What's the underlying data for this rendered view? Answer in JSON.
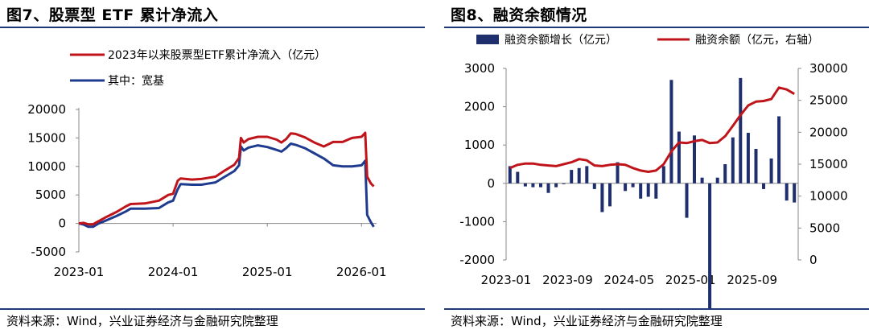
{
  "left": {
    "title": "图7、股票型 ETF 累计净流入",
    "source": "资料来源：Wind，兴业证券经济与金融研究院整理",
    "chart_data": {
      "type": "line",
      "legend": [
        {
          "name": "2023年以来股票型ETF累计净流入（亿元）",
          "color": "#c0141b"
        },
        {
          "name": "其中：宽基",
          "color": "#1f3b8f"
        }
      ],
      "xlim": [
        2023.0,
        2026.16
      ],
      "ylim": [
        -5000,
        20000
      ],
      "yticks": [
        -5000,
        0,
        5000,
        10000,
        15000,
        20000
      ],
      "ytick_labels": [
        "-5000",
        "0",
        "5000",
        "10000",
        "15000",
        "20000"
      ],
      "xticks": [
        2023.0,
        2024.0,
        2025.0,
        2026.0
      ],
      "xtick_labels": [
        "2023-01",
        "2024-01",
        "2025-01",
        "2026-01"
      ],
      "series": [
        {
          "name": "2023年以来股票型ETF累计净流入（亿元）",
          "color": "#c0141b",
          "points": [
            [
              2023.0,
              0
            ],
            [
              2023.05,
              100
            ],
            [
              2023.1,
              -150
            ],
            [
              2023.15,
              -150
            ],
            [
              2023.2,
              300
            ],
            [
              2023.3,
              1200
            ],
            [
              2023.4,
              2000
            ],
            [
              2023.5,
              3000
            ],
            [
              2023.55,
              3400
            ],
            [
              2023.7,
              3500
            ],
            [
              2023.85,
              4000
            ],
            [
              2023.95,
              5000
            ],
            [
              2024.0,
              5200
            ],
            [
              2024.05,
              7500
            ],
            [
              2024.08,
              7900
            ],
            [
              2024.2,
              7700
            ],
            [
              2024.3,
              7800
            ],
            [
              2024.45,
              8200
            ],
            [
              2024.55,
              9300
            ],
            [
              2024.65,
              10300
            ],
            [
              2024.7,
              11500
            ],
            [
              2024.72,
              15000
            ],
            [
              2024.75,
              14200
            ],
            [
              2024.8,
              14800
            ],
            [
              2024.9,
              15200
            ],
            [
              2025.0,
              15200
            ],
            [
              2025.1,
              14700
            ],
            [
              2025.15,
              14200
            ],
            [
              2025.2,
              14800
            ],
            [
              2025.25,
              15800
            ],
            [
              2025.3,
              15700
            ],
            [
              2025.4,
              15100
            ],
            [
              2025.5,
              14200
            ],
            [
              2025.6,
              13500
            ],
            [
              2025.7,
              14300
            ],
            [
              2025.8,
              14300
            ],
            [
              2025.9,
              15000
            ],
            [
              2026.0,
              15200
            ],
            [
              2026.04,
              15900
            ],
            [
              2026.06,
              8200
            ],
            [
              2026.1,
              7000
            ],
            [
              2026.13,
              6500
            ]
          ]
        },
        {
          "name": "其中：宽基",
          "color": "#1f3b8f",
          "points": [
            [
              2023.0,
              0
            ],
            [
              2023.05,
              -200
            ],
            [
              2023.1,
              -600
            ],
            [
              2023.15,
              -600
            ],
            [
              2023.2,
              -100
            ],
            [
              2023.3,
              600
            ],
            [
              2023.4,
              1300
            ],
            [
              2023.5,
              2100
            ],
            [
              2023.55,
              2600
            ],
            [
              2023.7,
              2600
            ],
            [
              2023.85,
              2700
            ],
            [
              2023.95,
              3700
            ],
            [
              2024.0,
              4000
            ],
            [
              2024.05,
              6000
            ],
            [
              2024.08,
              6900
            ],
            [
              2024.2,
              6800
            ],
            [
              2024.3,
              6800
            ],
            [
              2024.45,
              7200
            ],
            [
              2024.55,
              8200
            ],
            [
              2024.65,
              9200
            ],
            [
              2024.7,
              10200
            ],
            [
              2024.72,
              13500
            ],
            [
              2024.75,
              12800
            ],
            [
              2024.8,
              13300
            ],
            [
              2024.9,
              13700
            ],
            [
              2025.0,
              13400
            ],
            [
              2025.1,
              12900
            ],
            [
              2025.15,
              12600
            ],
            [
              2025.2,
              13200
            ],
            [
              2025.25,
              14000
            ],
            [
              2025.3,
              13800
            ],
            [
              2025.4,
              13200
            ],
            [
              2025.5,
              12300
            ],
            [
              2025.6,
              11400
            ],
            [
              2025.7,
              10200
            ],
            [
              2025.8,
              10000
            ],
            [
              2025.9,
              10000
            ],
            [
              2026.0,
              10200
            ],
            [
              2026.04,
              11000
            ],
            [
              2026.06,
              1500
            ],
            [
              2026.1,
              200
            ],
            [
              2026.13,
              -600
            ]
          ]
        }
      ]
    }
  },
  "right": {
    "title": "图8、融资余额情况",
    "source": "资料来源：Wind，兴业证券经济与金融研究院整理",
    "chart_data": {
      "type": "bar+line",
      "legend": [
        {
          "name": "融资余额增长（亿元）",
          "color": "#1f2f6e",
          "kind": "bar"
        },
        {
          "name": "融资余额（亿元，右轴）",
          "color": "#c0141b",
          "kind": "line"
        }
      ],
      "ylim_left": [
        -2000,
        3000
      ],
      "yticks_left": [
        -2000,
        -1000,
        0,
        1000,
        2000,
        3000
      ],
      "ytick_labels_left": [
        "-2000",
        "-1000",
        "0",
        "1000",
        "2000",
        "3000"
      ],
      "ylim_right": [
        0,
        30000
      ],
      "yticks_right": [
        0,
        5000,
        10000,
        15000,
        20000,
        25000,
        30000
      ],
      "ytick_labels_right": [
        "0",
        "5000",
        "10000",
        "15000",
        "20000",
        "25000",
        "30000"
      ],
      "xtick_labels": [
        "2023-01",
        "2023-09",
        "2024-05",
        "2025-01",
        "2025-09"
      ],
      "xtick_index": [
        0,
        8,
        16,
        24,
        32
      ],
      "bar_values": [
        450,
        300,
        -80,
        -100,
        -100,
        -250,
        -100,
        -20,
        350,
        400,
        450,
        -150,
        -750,
        -600,
        550,
        -200,
        -100,
        -400,
        -350,
        -400,
        450,
        2700,
        1350,
        -900,
        1250,
        150,
        -3300,
        150,
        500,
        1200,
        2750,
        1320,
        900,
        -150,
        650,
        1750,
        -450,
        -500
      ],
      "line_values": [
        14400,
        14900,
        15100,
        15100,
        14900,
        14800,
        14700,
        15000,
        15300,
        15800,
        15600,
        14800,
        14700,
        14900,
        15000,
        14900,
        14400,
        14000,
        13800,
        14000,
        15000,
        17000,
        18400,
        18300,
        18600,
        18800,
        18300,
        18400,
        19400,
        21000,
        22700,
        24200,
        24800,
        24900,
        25200,
        27000,
        26700,
        26000
      ]
    }
  }
}
